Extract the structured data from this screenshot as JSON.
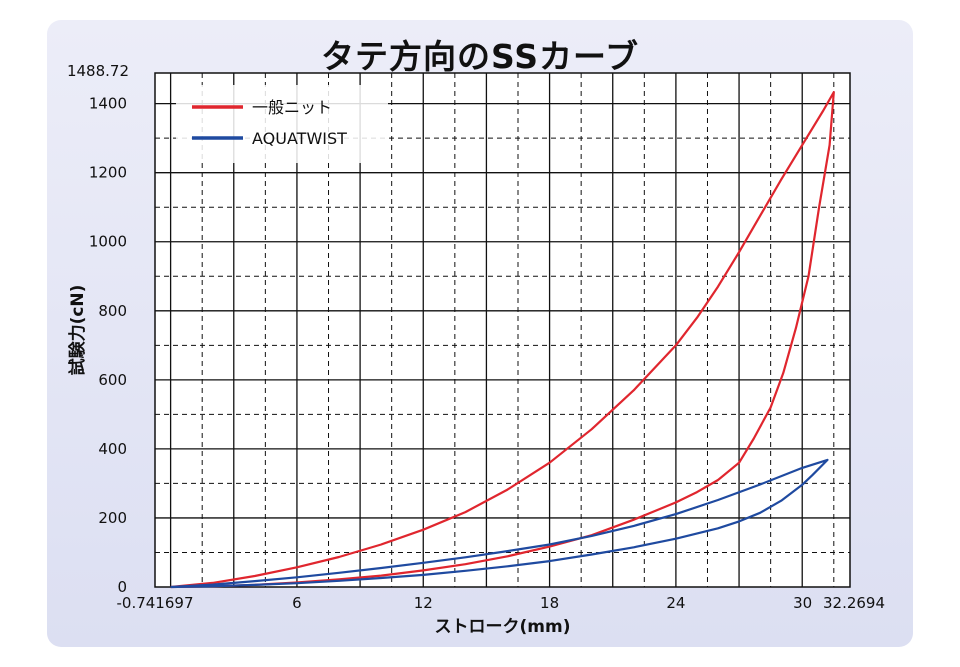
{
  "chart_data": {
    "type": "line",
    "title": "タテ方向のSSカーブ",
    "xlabel": "ストローク(mm)",
    "ylabel": "試験力(cN)",
    "xlim": [
      -0.741697,
      32.2694
    ],
    "ylim": [
      0,
      1488.72
    ],
    "x_ticks": [
      {
        "value": -0.741697,
        "label": "-0.741697"
      },
      {
        "value": 6,
        "label": "6"
      },
      {
        "value": 12,
        "label": "12"
      },
      {
        "value": 18,
        "label": "18"
      },
      {
        "value": 24,
        "label": "24"
      },
      {
        "value": 30,
        "label": "30"
      },
      {
        "value": 32.2694,
        "label": "32.2694"
      }
    ],
    "y_ticks": [
      {
        "value": 0,
        "label": "0"
      },
      {
        "value": 200,
        "label": "200"
      },
      {
        "value": 400,
        "label": "400"
      },
      {
        "value": 600,
        "label": "600"
      },
      {
        "value": 800,
        "label": "800"
      },
      {
        "value": 1000,
        "label": "1000"
      },
      {
        "value": 1200,
        "label": "1200"
      },
      {
        "value": 1400,
        "label": "1400"
      },
      {
        "value": 1488.72,
        "label": "1488.72"
      }
    ],
    "grid": true,
    "legend_position": "top-left",
    "series": [
      {
        "name": "一般ニット",
        "color": "#e0262e",
        "x": [
          0,
          2,
          4,
          6,
          8,
          10,
          12,
          14,
          16,
          18,
          20,
          22,
          24,
          25,
          26,
          27,
          28,
          29,
          30,
          31,
          31.5,
          31.3,
          30.8,
          30.3,
          29.7,
          29.1,
          28.5,
          27.7,
          27,
          26,
          25,
          24,
          22,
          20,
          18,
          16,
          14,
          12,
          10,
          8,
          6,
          4,
          2,
          0
        ],
        "y": [
          0,
          12,
          32,
          57,
          87,
          123,
          166,
          217,
          282,
          360,
          457,
          570,
          700,
          780,
          870,
          970,
          1075,
          1180,
          1280,
          1380,
          1433,
          1280,
          1100,
          900,
          750,
          620,
          520,
          430,
          360,
          310,
          275,
          245,
          195,
          150,
          117,
          89,
          66,
          48,
          33,
          22,
          13,
          6,
          2,
          0
        ]
      },
      {
        "name": "AQUATWIST",
        "color": "#1f4aa0",
        "x": [
          0,
          2,
          4,
          6,
          8,
          10,
          12,
          14,
          16,
          18,
          20,
          22,
          24,
          26,
          28,
          30,
          31.2,
          30.5,
          30,
          29,
          28,
          27,
          26,
          24,
          22,
          20,
          18,
          16,
          14,
          12,
          10,
          8,
          6,
          4,
          2,
          0
        ],
        "y": [
          0,
          7,
          17,
          28,
          41,
          55,
          70,
          86,
          104,
          123,
          148,
          177,
          211,
          252,
          297,
          345,
          368,
          325,
          296,
          250,
          215,
          190,
          170,
          140,
          115,
          94,
          75,
          60,
          47,
          35,
          26,
          18,
          11,
          6,
          2,
          0
        ]
      }
    ]
  }
}
